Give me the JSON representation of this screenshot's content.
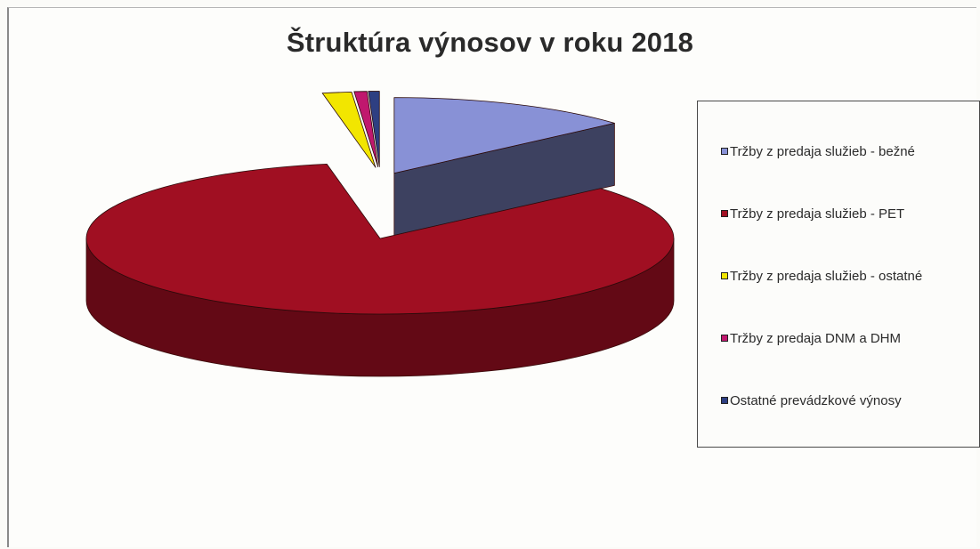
{
  "chart_data": {
    "type": "pie",
    "title": "Štruktúra výnosov v roku 2018",
    "categories": [
      "Tržby z predaja služieb - bežné",
      "Tržby z predaja služieb - PET",
      "Tržby z predaja služieb - ostatné",
      "Tržby z predaja DNM a DHM",
      "Ostatné prevádzkové výnosy"
    ],
    "values": [
      13.5,
      83.6,
      1.6,
      0.7,
      0.6
    ],
    "colors": [
      "#8891d6",
      "#a00f22",
      "#f2e600",
      "#c0186e",
      "#2e3f82"
    ],
    "exploded": true,
    "three_d": true,
    "legend_position": "right"
  }
}
